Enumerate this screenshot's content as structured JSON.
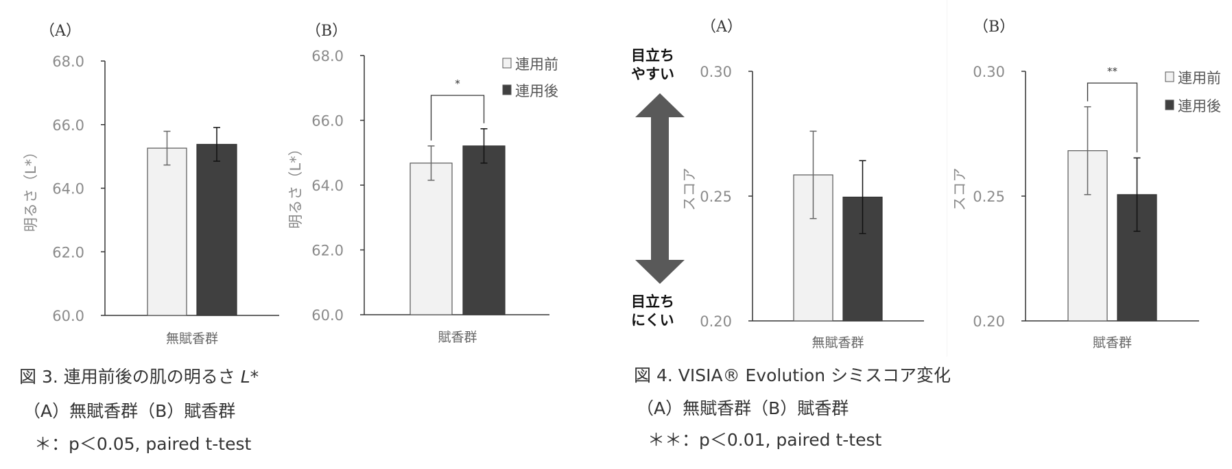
{
  "figure3": {
    "caption_title": "図 3. 連用前後の肌の明るさ ",
    "caption_title_italic": "L*",
    "caption_groups": "（A）無賦香群（B）賦香群",
    "caption_stats": "＊：p＜0.05, paired t-test"
  },
  "figure4": {
    "caption_title": "図 4. VISIA® Evolution シミスコア変化",
    "caption_groups": "（A）無賦香群（B）賦香群",
    "caption_stats": "＊＊：p＜0.01, paired t-test",
    "arrow_top_line1": "目立ち",
    "arrow_top_line2": "やすい",
    "arrow_bottom_line1": "目立ち",
    "arrow_bottom_line2": "にくい",
    "arrow_color": "#595959"
  },
  "colors": {
    "before": "#f2f2f2",
    "after": "#404040",
    "axis": "#333333"
  },
  "chart_data": [
    {
      "type": "bar",
      "panel": "（A）",
      "ylabel": "明るさ（L*）",
      "categories": [
        "無賦香群"
      ],
      "ylim": [
        60,
        68
      ],
      "ytick_labels": [
        "60.0",
        "62.0",
        "64.0",
        "66.0",
        "68.0"
      ],
      "yticks": [
        60,
        62,
        64,
        66,
        68
      ],
      "legend": null,
      "series": [
        {
          "name": "連用前",
          "values": [
            65.26
          ],
          "error": [
            0.53
          ]
        },
        {
          "name": "連用後",
          "values": [
            65.38
          ],
          "error": [
            0.53
          ]
        }
      ],
      "significance": null
    },
    {
      "type": "bar",
      "panel": "（B）",
      "ylabel": "明るさ（L*）",
      "categories": [
        "賦香群"
      ],
      "ylim": [
        60,
        68
      ],
      "ytick_labels": [
        "60.0",
        "62.0",
        "64.0",
        "66.0",
        "68.0"
      ],
      "yticks": [
        60,
        62,
        64,
        66,
        68
      ],
      "legend": {
        "position": "top-right",
        "entries": [
          "連用前",
          "連用後"
        ]
      },
      "series": [
        {
          "name": "連用前",
          "values": [
            64.68
          ],
          "error": [
            0.53
          ]
        },
        {
          "name": "連用後",
          "values": [
            65.21
          ],
          "error": [
            0.53
          ]
        }
      ],
      "significance": {
        "label": "*",
        "bracket_y": 66.77
      }
    },
    {
      "type": "bar",
      "panel": "（A）",
      "ylabel": "スコア",
      "categories": [
        "無賦香群"
      ],
      "ylim": [
        0.2,
        0.3
      ],
      "ytick_labels": [
        "0.20",
        "0.25",
        "0.30"
      ],
      "yticks": [
        0.2,
        0.25,
        0.3
      ],
      "legend": null,
      "series": [
        {
          "name": "連用前",
          "values": [
            0.2585
          ],
          "error": [
            0.0175
          ]
        },
        {
          "name": "連用後",
          "values": [
            0.2496
          ],
          "error": [
            0.0146
          ]
        }
      ],
      "significance": null
    },
    {
      "type": "bar",
      "panel": "（B）",
      "ylabel": "スコア",
      "categories": [
        "賦香群"
      ],
      "ylim": [
        0.2,
        0.3
      ],
      "ytick_labels": [
        "0.20",
        "0.25",
        "0.30"
      ],
      "yticks": [
        0.2,
        0.25,
        0.3
      ],
      "legend": {
        "position": "top-right",
        "entries": [
          "連用前",
          "連用後"
        ]
      },
      "series": [
        {
          "name": "連用前",
          "values": [
            0.2682
          ],
          "error": [
            0.0176
          ]
        },
        {
          "name": "連用後",
          "values": [
            0.2506
          ],
          "error": [
            0.0147
          ]
        }
      ],
      "significance": {
        "label": "**",
        "bracket_y": 0.2953
      }
    }
  ]
}
